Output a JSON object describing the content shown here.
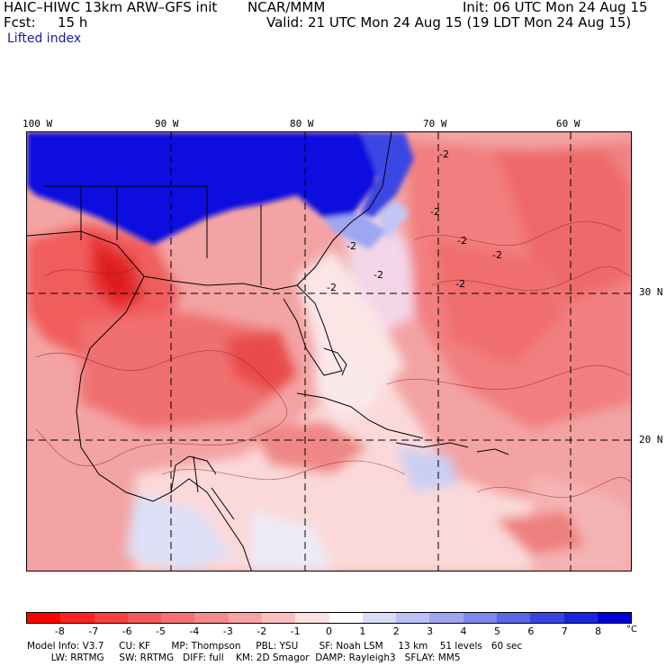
{
  "header": {
    "model_title": "HAIC–HIWC 13km ARW–GFS init",
    "org": "NCAR/MMM",
    "init": "Init: 06 UTC Mon 24 Aug 15",
    "fcst_label": "Fcst:",
    "fcst_value": "15 h",
    "valid": "Valid: 21 UTC Mon 24 Aug 15 (19 LDT Mon 24 Aug 15)",
    "field": "Lifted index"
  },
  "map": {
    "lon_labels": [
      "100 W",
      "90 W",
      "80 W",
      "70 W",
      "60 W"
    ],
    "lat_labels": [
      "30 N",
      "20 N"
    ],
    "contour_labels": [
      "-2",
      "-2",
      "-2",
      "-2",
      "-2",
      "-2",
      "-2",
      "-2"
    ]
  },
  "colorbar": {
    "colors": [
      "#ff0000",
      "#ff2222",
      "#ff3f3f",
      "#f75959",
      "#f57171",
      "#f58a8a",
      "#f7a3a3",
      "#fac0c0",
      "#fde0e0",
      "#ffffff",
      "#d8dcf7",
      "#bbc2f5",
      "#9ea6f1",
      "#7d88ec",
      "#5967e7",
      "#3744e1",
      "#1a25da",
      "#0000d6"
    ],
    "ticks": [
      "-8",
      "-7",
      "-6",
      "-5",
      "-4",
      "-3",
      "-2",
      "-1",
      "0",
      "1",
      "2",
      "3",
      "4",
      "5",
      "6",
      "7",
      "8"
    ],
    "unit": "°C"
  },
  "model_info": {
    "line1": "Model Info: V3.7     CU: KF       MP: Thompson     PBL: YSU       SF: Noah LSM     13 km    51 levels   60 sec",
    "line2": "        LW: RRTMG     SW: RRTMG   DIFF: full    KM: 2D Smagor  DAMP: Rayleigh3   SFLAY: MM5"
  }
}
